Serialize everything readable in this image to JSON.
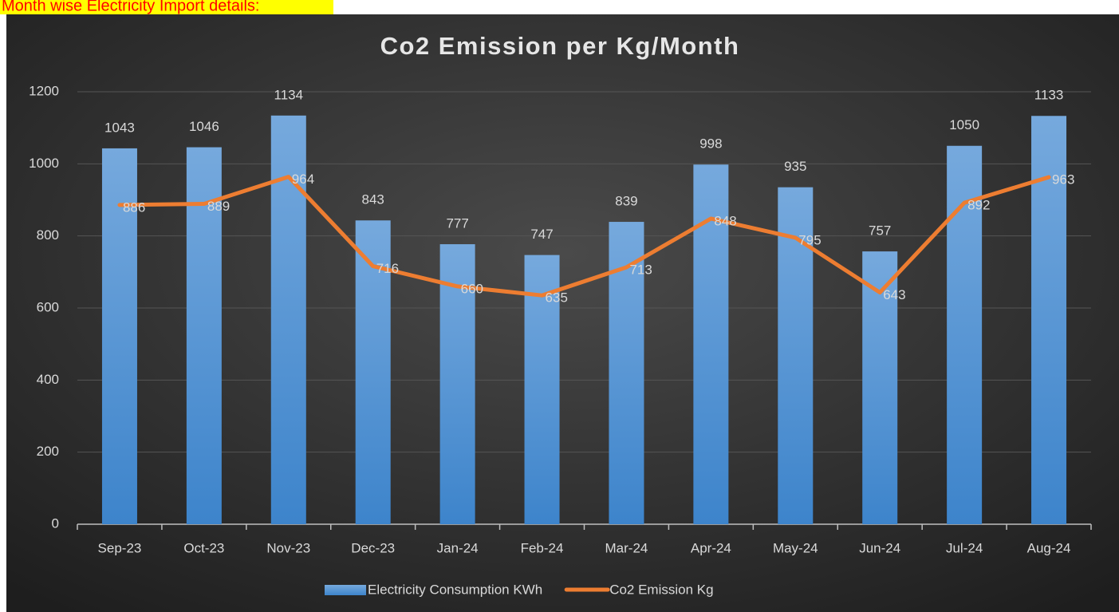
{
  "heading": "Month wise Electricity Import details:",
  "chart_data": {
    "type": "combo",
    "title": "Co2 Emission per Kg/Month",
    "categories": [
      "Sep-23",
      "Oct-23",
      "Nov-23",
      "Dec-23",
      "Jan-24",
      "Feb-24",
      "Mar-24",
      "Apr-24",
      "May-24",
      "Jun-24",
      "Jul-24",
      "Aug-24"
    ],
    "series": [
      {
        "name": "Electricity Consumption KWh",
        "type": "bar",
        "color": "#5b9bd5",
        "values": [
          1043,
          1046,
          1134,
          843,
          777,
          747,
          839,
          998,
          935,
          757,
          1050,
          1133
        ]
      },
      {
        "name": "Co2 Emission Kg",
        "type": "line",
        "color": "#ed7d31",
        "values": [
          886,
          889,
          964,
          716,
          660,
          635,
          713,
          848,
          795,
          643,
          892,
          963
        ]
      }
    ],
    "ylim": [
      0,
      1200
    ],
    "yticks": [
      0,
      200,
      400,
      600,
      800,
      1000,
      1200
    ],
    "grid": true,
    "legend": "bottom"
  }
}
